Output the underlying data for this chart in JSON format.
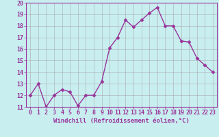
{
  "x": [
    0,
    1,
    2,
    3,
    4,
    5,
    6,
    7,
    8,
    9,
    10,
    11,
    12,
    13,
    14,
    15,
    16,
    17,
    18,
    19,
    20,
    21,
    22,
    23
  ],
  "y": [
    12,
    13,
    11,
    12,
    12.5,
    12.3,
    11.1,
    12,
    12,
    13.2,
    16.1,
    17.0,
    18.5,
    17.9,
    18.5,
    19.1,
    19.6,
    18.0,
    18.0,
    16.7,
    16.6,
    15.2,
    14.6,
    14.0
  ],
  "line_color": "#993399",
  "marker": "D",
  "marker_size": 2.5,
  "bg_color": "#c8eef0",
  "grid_color": "#aaaaaa",
  "xlabel": "Windchill (Refroidissement éolien,°C)",
  "ylabel": "",
  "ylim": [
    11,
    20
  ],
  "xlim_min": -0.5,
  "xlim_max": 23.5,
  "yticks": [
    11,
    12,
    13,
    14,
    15,
    16,
    17,
    18,
    19,
    20
  ],
  "xticks": [
    0,
    1,
    2,
    3,
    4,
    5,
    6,
    7,
    8,
    9,
    10,
    11,
    12,
    13,
    14,
    15,
    16,
    17,
    18,
    19,
    20,
    21,
    22,
    23
  ],
  "axis_color": "#993399",
  "tick_font_size": 6,
  "xlabel_font_size": 6.5,
  "line_width": 1.0
}
